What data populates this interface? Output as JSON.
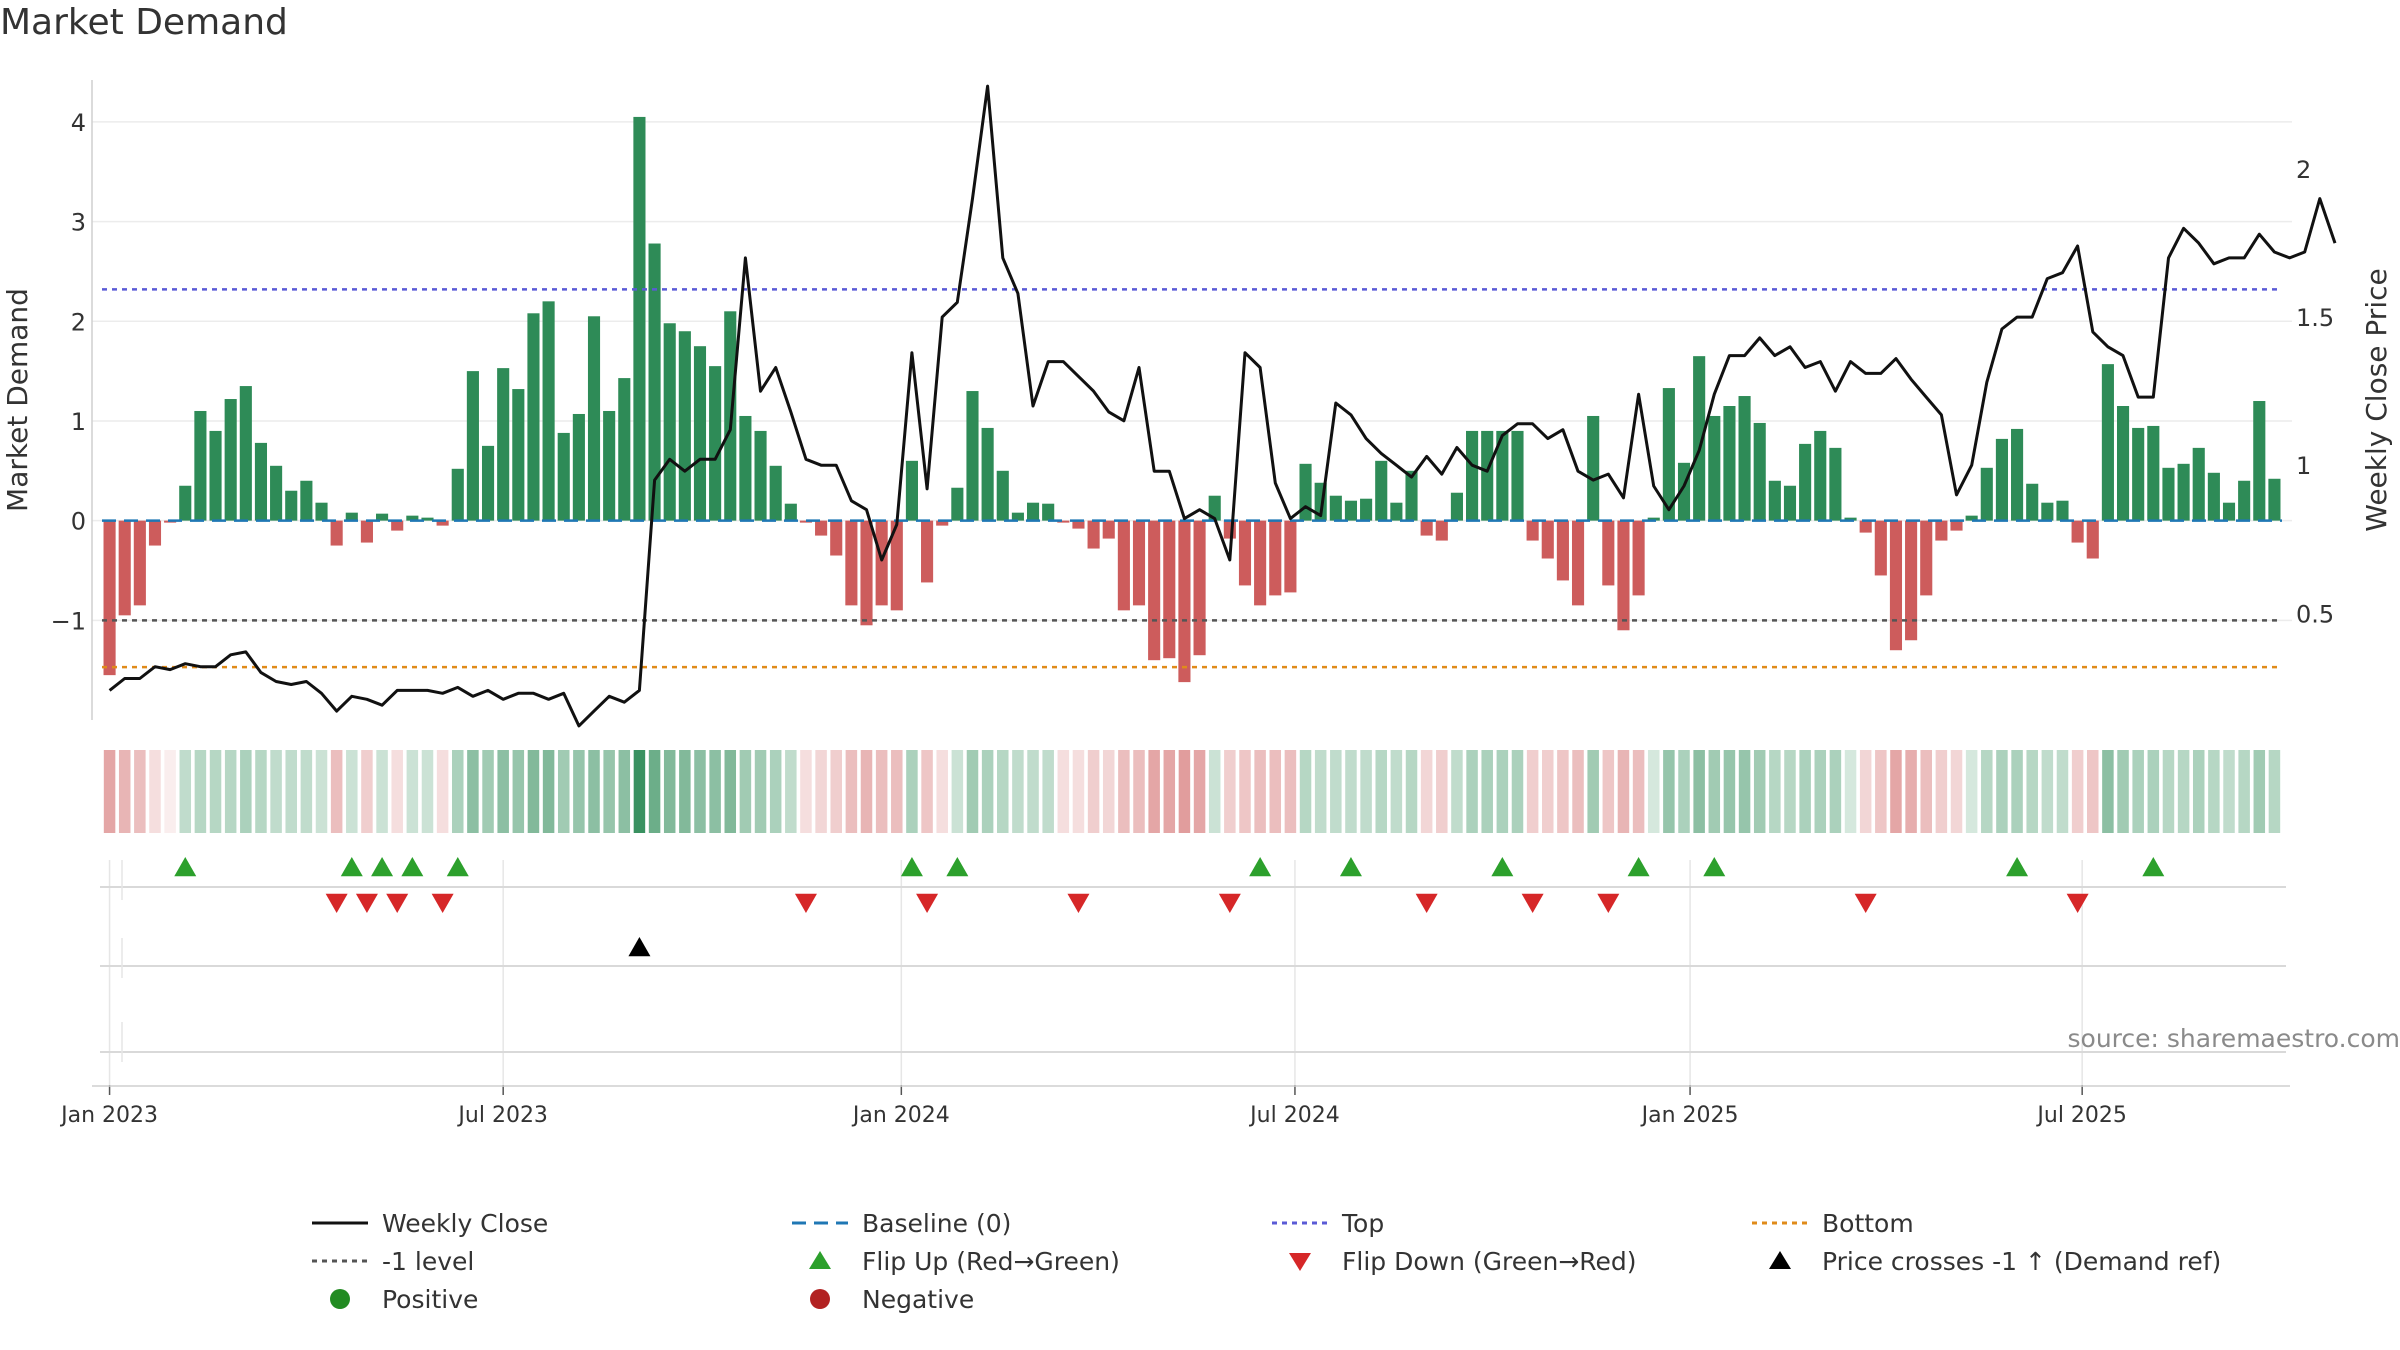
{
  "title": "Market Demand",
  "source": "source: sharemaestro.com",
  "colors": {
    "positive_bar": "#2e8b57",
    "negative_bar": "#cd5c5c",
    "close_line": "#111111",
    "baseline": "#1f77b4",
    "top_line": "#5a5ad6",
    "bottom_line": "#e08b1a",
    "minus1_line": "#555555",
    "flip_up": "#2ca02c",
    "flip_down": "#d62728",
    "cross": "#000000",
    "positive_dot": "#228b22",
    "negative_dot": "#b22222"
  },
  "chart_data": {
    "type": "bar+line",
    "title": "Market Demand",
    "ylabel_left": "Market Demand",
    "ylabel_right": "Weekly Close Price",
    "ylim_left": [
      -2,
      4.3
    ],
    "yticks_left": [
      -1,
      0,
      1,
      2,
      3,
      4
    ],
    "ytick_labels_left": [
      "−1",
      "0",
      "1",
      "2",
      "3",
      "4"
    ],
    "ylim_right": [
      0.14,
      2.26
    ],
    "yticks_right": [
      0.5,
      1,
      1.5,
      2
    ],
    "ytick_labels_right": [
      "0.5",
      "1",
      "1.5",
      "2"
    ],
    "x_start": "2023-01-02",
    "x_step_days": 7,
    "x_ticks": [
      {
        "label": "Jan 2023",
        "week": 0
      },
      {
        "label": "Jul 2023",
        "week": 26
      },
      {
        "label": "Jan 2024",
        "week": 52.3
      },
      {
        "label": "Jul 2024",
        "week": 78.3
      },
      {
        "label": "Jan 2025",
        "week": 104.4
      },
      {
        "label": "Jul 2025",
        "week": 130.3
      }
    ],
    "levels": {
      "top": 2.32,
      "minus_one": -1.0,
      "bottom": -1.47,
      "baseline": 0
    },
    "demand": [
      -1.55,
      -0.95,
      -0.85,
      -0.25,
      -0.02,
      0.35,
      1.1,
      0.9,
      1.22,
      1.35,
      0.78,
      0.55,
      0.3,
      0.4,
      0.18,
      -0.25,
      0.08,
      -0.22,
      0.07,
      -0.1,
      0.05,
      0.03,
      -0.05,
      0.52,
      1.5,
      0.75,
      1.53,
      1.32,
      2.08,
      2.2,
      0.88,
      1.07,
      2.05,
      1.1,
      1.43,
      4.05,
      2.78,
      1.98,
      1.9,
      1.75,
      1.55,
      2.1,
      1.05,
      0.9,
      0.55,
      0.17,
      -0.02,
      -0.15,
      -0.35,
      -0.85,
      -1.05,
      -0.85,
      -0.9,
      0.6,
      -0.62,
      -0.05,
      0.33,
      1.3,
      0.93,
      0.5,
      0.08,
      0.18,
      0.17,
      -0.02,
      -0.08,
      -0.28,
      -0.18,
      -0.9,
      -0.85,
      -1.4,
      -1.38,
      -1.62,
      -1.35,
      0.25,
      -0.18,
      -0.65,
      -0.85,
      -0.75,
      -0.72,
      0.57,
      0.38,
      0.25,
      0.2,
      0.22,
      0.6,
      0.18,
      0.5,
      -0.15,
      -0.2,
      0.28,
      0.9,
      0.9,
      0.9,
      0.9,
      -0.2,
      -0.38,
      -0.6,
      -0.85,
      1.05,
      -0.65,
      -1.1,
      -0.75,
      0.03,
      1.33,
      0.58,
      1.65,
      1.05,
      1.15,
      1.25,
      0.98,
      0.4,
      0.35,
      0.77,
      0.9,
      0.73,
      0.03,
      -0.12,
      -0.55,
      -1.3,
      -1.2,
      -0.75,
      -0.2,
      -0.1,
      0.05,
      0.53,
      0.82,
      0.92,
      0.37,
      0.18,
      0.2,
      -0.22,
      -0.38,
      1.57,
      1.15,
      0.93,
      0.95,
      0.53,
      0.57,
      0.73,
      0.48,
      0.18,
      0.4,
      1.2,
      0.42
    ],
    "close": [
      0.24,
      0.28,
      0.28,
      0.32,
      0.31,
      0.33,
      0.32,
      0.32,
      0.36,
      0.37,
      0.3,
      0.27,
      0.26,
      0.27,
      0.23,
      0.17,
      0.22,
      0.21,
      0.19,
      0.24,
      0.24,
      0.24,
      0.23,
      0.25,
      0.22,
      0.24,
      0.21,
      0.23,
      0.23,
      0.21,
      0.23,
      0.12,
      0.17,
      0.22,
      0.2,
      0.24,
      0.95,
      1.02,
      0.98,
      1.02,
      1.02,
      1.12,
      1.7,
      1.25,
      1.33,
      1.18,
      1.02,
      1.0,
      1.0,
      0.88,
      0.85,
      0.68,
      0.8,
      1.38,
      0.92,
      1.5,
      1.55,
      1.9,
      2.28,
      1.7,
      1.58,
      1.2,
      1.35,
      1.35,
      1.3,
      1.25,
      1.18,
      1.15,
      1.33,
      0.98,
      0.98,
      0.82,
      0.85,
      0.82,
      0.68,
      1.38,
      1.33,
      0.94,
      0.82,
      0.86,
      0.83,
      1.21,
      1.17,
      1.09,
      1.04,
      1.0,
      0.96,
      1.03,
      0.97,
      1.06,
      1.0,
      0.98,
      1.1,
      1.14,
      1.14,
      1.09,
      1.12,
      0.98,
      0.95,
      0.97,
      0.89,
      1.24,
      0.93,
      0.85,
      0.93,
      1.05,
      1.24,
      1.37,
      1.37,
      1.43,
      1.37,
      1.4,
      1.33,
      1.35,
      1.25,
      1.35,
      1.31,
      1.31,
      1.36,
      1.29,
      1.23,
      1.17,
      0.9,
      1.0,
      1.28,
      1.46,
      1.5,
      1.5,
      1.63,
      1.65,
      1.74,
      1.45,
      1.4,
      1.37,
      1.23,
      1.23,
      1.7,
      1.8,
      1.75,
      1.68,
      1.7,
      1.7,
      1.78,
      1.72,
      1.7,
      1.72,
      1.9,
      1.75
    ],
    "heat_intensity": [
      0.55,
      0.45,
      0.4,
      0.2,
      0.1,
      0.3,
      0.35,
      0.35,
      0.35,
      0.4,
      0.35,
      0.3,
      0.3,
      0.3,
      0.25,
      0.4,
      0.25,
      0.3,
      0.25,
      0.2,
      0.25,
      0.25,
      0.2,
      0.4,
      0.55,
      0.45,
      0.55,
      0.5,
      0.6,
      0.6,
      0.45,
      0.5,
      0.55,
      0.5,
      0.55,
      0.95,
      0.7,
      0.6,
      0.6,
      0.55,
      0.55,
      0.6,
      0.45,
      0.45,
      0.4,
      0.3,
      0.2,
      0.25,
      0.3,
      0.4,
      0.45,
      0.4,
      0.4,
      0.4,
      0.35,
      0.2,
      0.25,
      0.45,
      0.4,
      0.35,
      0.3,
      0.3,
      0.3,
      0.2,
      0.2,
      0.3,
      0.25,
      0.4,
      0.4,
      0.55,
      0.55,
      0.6,
      0.55,
      0.25,
      0.3,
      0.35,
      0.4,
      0.4,
      0.4,
      0.35,
      0.3,
      0.3,
      0.3,
      0.3,
      0.35,
      0.3,
      0.35,
      0.25,
      0.3,
      0.3,
      0.4,
      0.4,
      0.4,
      0.4,
      0.3,
      0.3,
      0.35,
      0.4,
      0.45,
      0.35,
      0.45,
      0.4,
      0.2,
      0.5,
      0.4,
      0.55,
      0.45,
      0.5,
      0.5,
      0.45,
      0.35,
      0.35,
      0.4,
      0.4,
      0.4,
      0.2,
      0.25,
      0.35,
      0.55,
      0.5,
      0.4,
      0.3,
      0.25,
      0.2,
      0.35,
      0.4,
      0.4,
      0.35,
      0.3,
      0.3,
      0.3,
      0.35,
      0.55,
      0.45,
      0.4,
      0.4,
      0.35,
      0.35,
      0.4,
      0.35,
      0.3,
      0.35,
      0.45,
      0.35
    ],
    "flip_up_weeks": [
      5,
      16,
      18,
      20,
      23,
      53,
      56,
      76,
      82,
      92,
      101,
      106,
      126,
      135
    ],
    "flip_down_weeks": [
      15,
      17,
      19,
      22,
      46,
      54,
      64,
      74,
      87,
      94,
      99,
      116,
      130
    ],
    "cross_up_weeks": [
      35
    ]
  },
  "legend": [
    {
      "label": "Weekly Close",
      "symbol": "solid-line",
      "color": "#111111"
    },
    {
      "label": "Baseline (0)",
      "symbol": "dashed-line",
      "color": "#1f77b4"
    },
    {
      "label": "Top",
      "symbol": "dotted-line",
      "color": "#5a5ad6"
    },
    {
      "label": "Bottom",
      "symbol": "dotted-line",
      "color": "#e08b1a"
    },
    {
      "label": "-1 level",
      "symbol": "dotted-line",
      "color": "#555555"
    },
    {
      "label": "Flip Up (Red→Green)",
      "symbol": "triangle-up",
      "color": "#2ca02c"
    },
    {
      "label": "Flip Down (Green→Red)",
      "symbol": "triangle-down",
      "color": "#d62728"
    },
    {
      "label": "Price crosses -1 ↑ (Demand ref)",
      "symbol": "triangle-up",
      "color": "#000000"
    },
    {
      "label": "Positive",
      "symbol": "dot",
      "color": "#228b22"
    },
    {
      "label": "Negative",
      "symbol": "dot",
      "color": "#b22222"
    }
  ]
}
